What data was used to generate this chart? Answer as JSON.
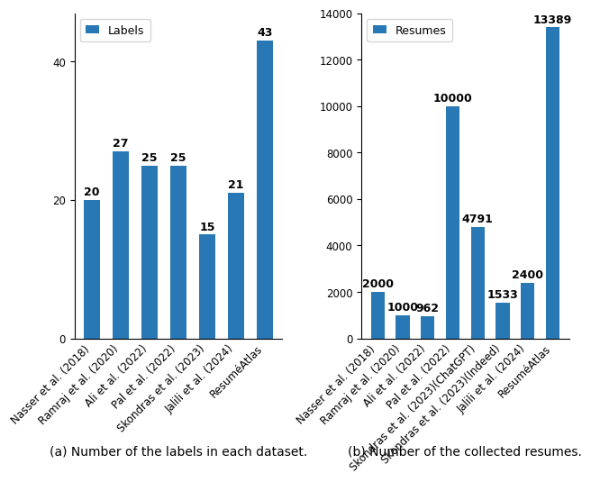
{
  "left_categories": [
    "Nasser et al. (2018)",
    "Ramraj et al. (2020)",
    "Ali et al. (2022)",
    "Pal et al. (2022)",
    "Skondras et al. (2023)",
    "Jalili et al. (2024)",
    "ResuméAtlas"
  ],
  "left_values": [
    20,
    27,
    25,
    25,
    15,
    21,
    43
  ],
  "left_legend": "Labels",
  "left_caption": "(a) Number of the labels in each dataset.",
  "left_ylim": [
    0,
    47
  ],
  "left_yticks": [
    0,
    20,
    40
  ],
  "right_categories": [
    "Nasser et al. (2018)",
    "Ramraj et al. (2020)",
    "Ali et al. (2022)",
    "Pal et al. (2022)",
    "Skondras et al. (2023)(ChatGPT)",
    "Skondras et al. (2023)(Indeed)",
    "Jalili et al. (2024)",
    "ResuméAtlas"
  ],
  "right_values": [
    2000,
    1000,
    962,
    10000,
    4791,
    1533,
    2400,
    13389
  ],
  "right_legend": "Resumes",
  "right_caption": "(b) Number of the collected resumes.",
  "right_ylim": [
    0,
    14000
  ],
  "right_yticks": [
    0,
    2000,
    4000,
    6000,
    8000,
    10000,
    12000,
    14000
  ],
  "bar_color": "#2878b5",
  "bar_edge_color": "none",
  "fig_bg_color": "#ffffff",
  "font_size_ticks": 8.5,
  "font_size_annotation": 9,
  "font_size_caption": 10,
  "font_size_legend": 9,
  "bar_width": 0.55
}
